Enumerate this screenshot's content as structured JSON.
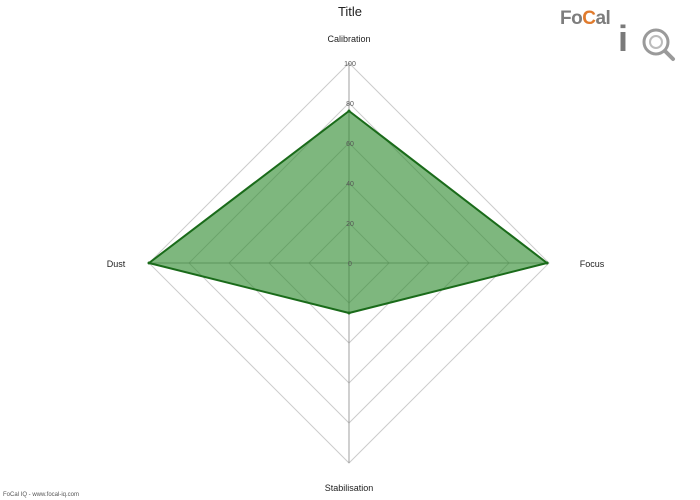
{
  "header": {
    "title": "Title"
  },
  "logo": {
    "brand_left": "Fo",
    "brand_ring": "C",
    "brand_right": "al",
    "brand_iq": "iQ"
  },
  "footer": {
    "text": "FoCal IQ - www.focal-iq.com"
  },
  "colors": {
    "fill": "#2e8b2e",
    "stroke": "#1a6b1a",
    "grid": "#cccccc",
    "axis": "#888888"
  },
  "chart_data": {
    "type": "radar",
    "categories": [
      "Calibration",
      "Focus",
      "Stabilisation",
      "Dust"
    ],
    "values": [
      76,
      99,
      25,
      100
    ],
    "rlim": [
      0,
      100
    ],
    "ticks": [
      0,
      20,
      40,
      60,
      80,
      100
    ],
    "title": "Title"
  }
}
